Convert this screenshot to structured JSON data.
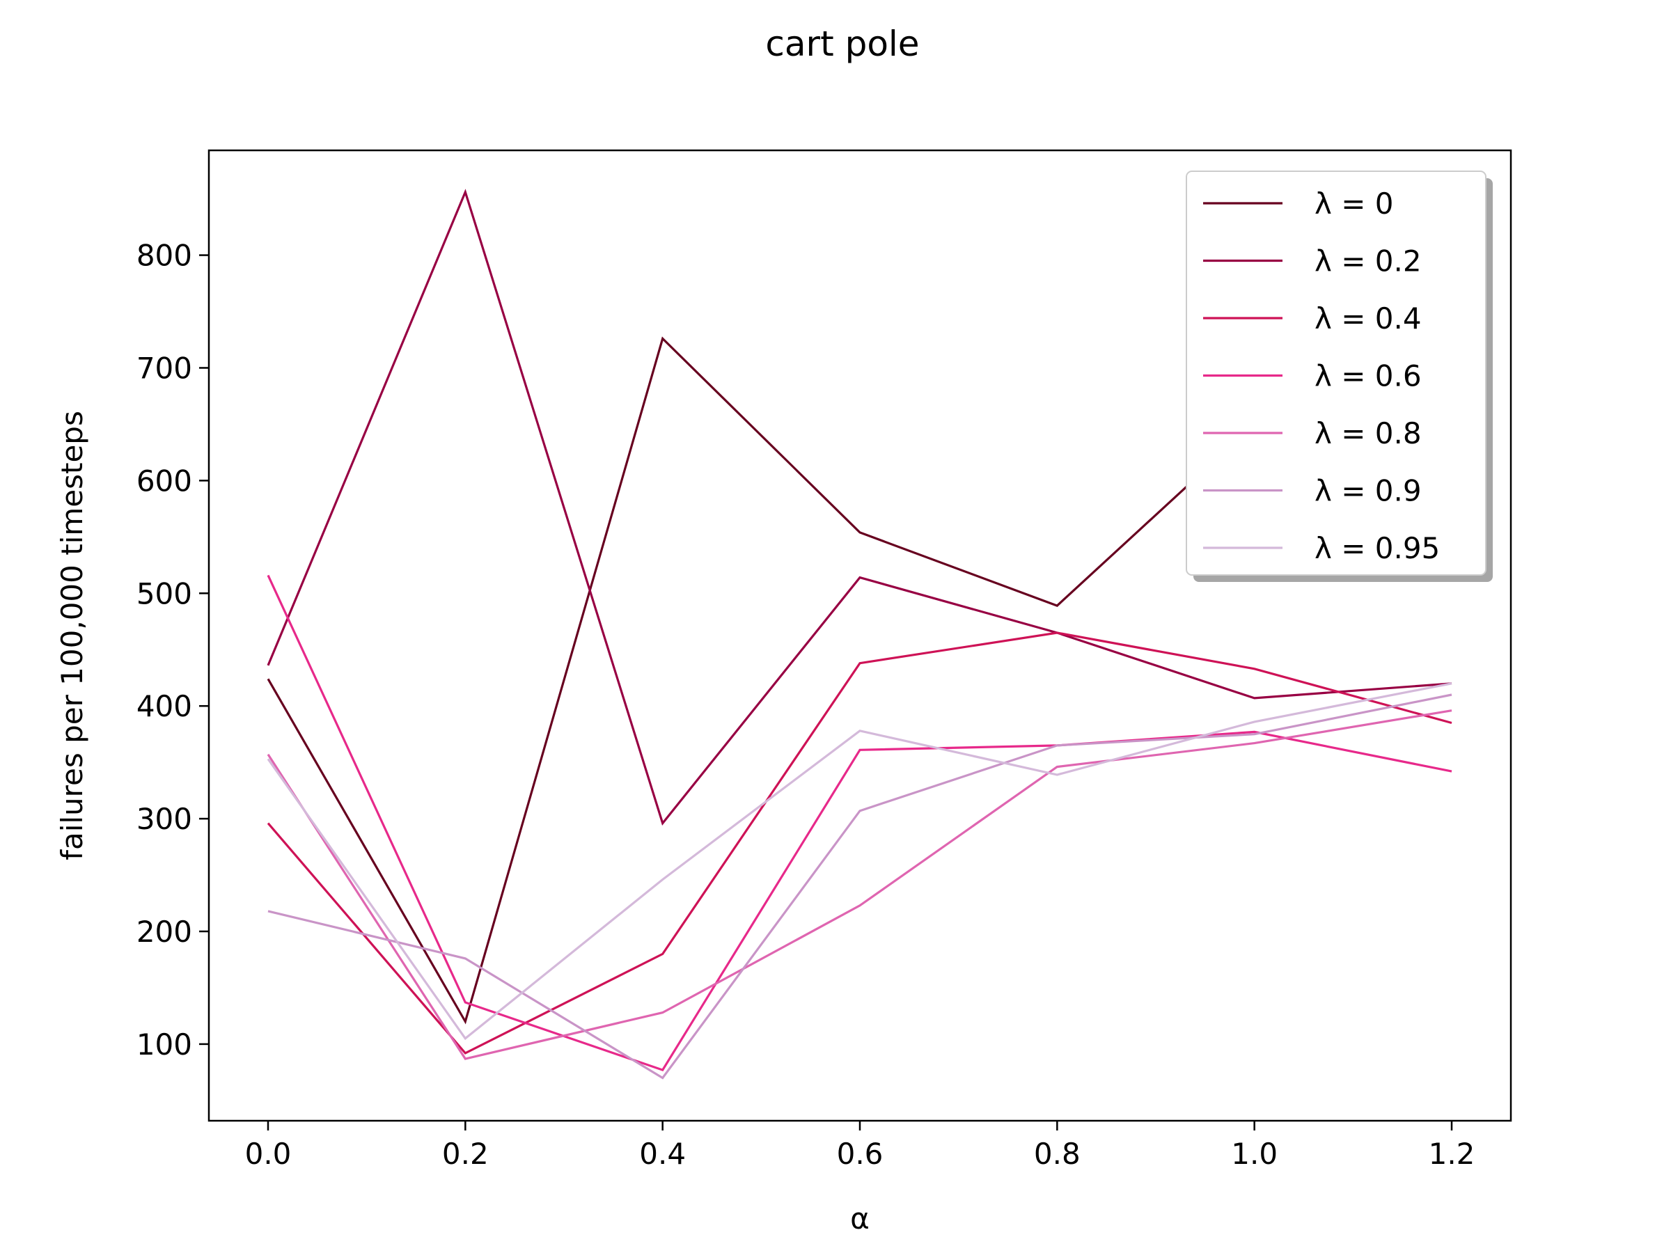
{
  "chart_data": {
    "type": "line",
    "title": "cart pole",
    "xlabel": "α",
    "ylabel": "failures per 100,000 timesteps",
    "x": [
      0.0,
      0.2,
      0.4,
      0.6,
      0.8,
      1.0,
      1.2
    ],
    "xticks": [
      "0.0",
      "0.2",
      "0.4",
      "0.6",
      "0.8",
      "1.0",
      "1.2"
    ],
    "yticks": [
      "100",
      "200",
      "300",
      "400",
      "500",
      "600",
      "700",
      "800"
    ],
    "xlim": [
      -0.06,
      1.26
    ],
    "ylim": [
      32,
      893
    ],
    "grid": false,
    "legend_position": "top-right",
    "series": [
      {
        "name": "λ = 0",
        "color": "#67001f",
        "values": [
          424,
          120,
          726,
          554,
          489,
          650,
          650
        ]
      },
      {
        "name": "λ = 0.2",
        "color": "#980043",
        "values": [
          436,
          856,
          296,
          514,
          465,
          407,
          420
        ]
      },
      {
        "name": "λ = 0.4",
        "color": "#ce1256",
        "values": [
          296,
          92,
          180,
          438,
          465,
          433,
          385
        ]
      },
      {
        "name": "λ = 0.6",
        "color": "#e7298a",
        "values": [
          516,
          137,
          77,
          361,
          365,
          377,
          342
        ]
      },
      {
        "name": "λ = 0.8",
        "color": "#df65b0",
        "values": [
          357,
          87,
          128,
          223,
          346,
          367,
          396
        ]
      },
      {
        "name": "λ = 0.9",
        "color": "#c994c7",
        "values": [
          218,
          176,
          70,
          307,
          365,
          375,
          410
        ]
      },
      {
        "name": "λ = 0.95",
        "color": "#d4b9da",
        "values": [
          353,
          105,
          246,
          378,
          339,
          386,
          420
        ]
      }
    ]
  }
}
